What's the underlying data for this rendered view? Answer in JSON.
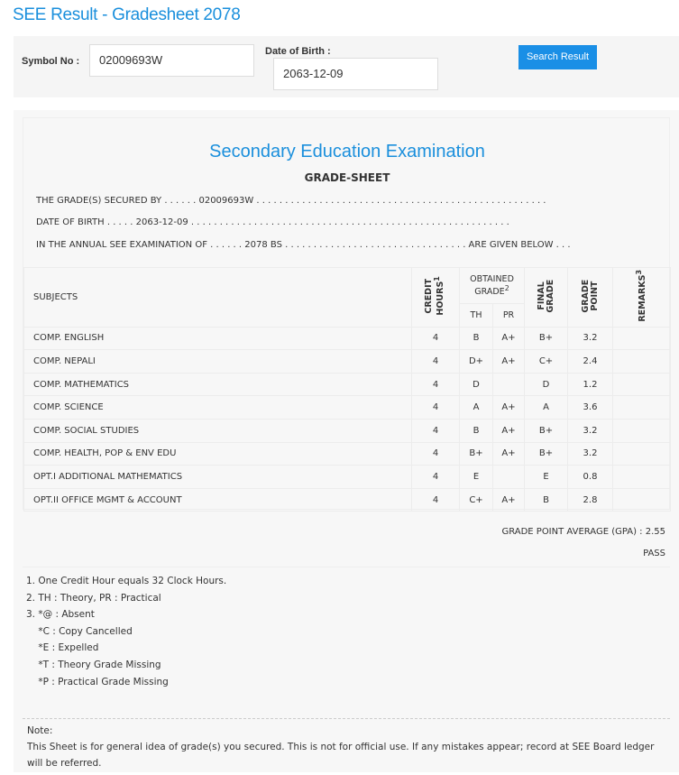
{
  "page_title": "SEE Result - Gradesheet 2078",
  "search": {
    "symbol_label": "Symbol No :",
    "symbol_value": "02009693W",
    "dob_label": "Date of Birth :",
    "dob_value": "2063-12-09",
    "button_label": "Search Result"
  },
  "sheet": {
    "heading": "Secondary Education Examination",
    "subheading": "GRADE-SHEET",
    "line1": "THE GRADE(S) SECURED BY . . . . . . 02009693W . . . . . . . . . . . . . . . . . . . . . . . . . . . . . . . . . . . . . . . . . . . . . . . . . . .",
    "line2": "DATE OF BIRTH . . . . . 2063-12-09 . . . . . . . . . . . . . . . . . . . . . . . . . . . . . . . . . . . . . . . . . . . . . . . . . . . . . . . .",
    "line3": "IN THE ANNUAL SEE EXAMINATION OF . . . . . . 2078 BS . . . . . . . . . . . . . . . . . . . . . . . . . . . . . . . . ARE GIVEN BELOW . . .",
    "headers": {
      "subjects": "SUBJECTS",
      "credit": "CREDIT HOURS",
      "credit_sup": "1",
      "obtained": "OBTAINED GRADE",
      "obtained_sup": "2",
      "th": "TH",
      "pr": "PR",
      "final": "FINAL GRADE",
      "gp": "GRADE POINT",
      "remarks": "REMARKS",
      "remarks_sup": "3"
    },
    "rows": [
      {
        "subject": "COMP. ENGLISH",
        "credit": "4",
        "th": "B",
        "pr": "A+",
        "final": "B+",
        "gp": "3.2",
        "remarks": ""
      },
      {
        "subject": "COMP. NEPALI",
        "credit": "4",
        "th": "D+",
        "pr": "A+",
        "final": "C+",
        "gp": "2.4",
        "remarks": ""
      },
      {
        "subject": "COMP. MATHEMATICS",
        "credit": "4",
        "th": "D",
        "pr": "",
        "final": "D",
        "gp": "1.2",
        "remarks": ""
      },
      {
        "subject": "COMP. SCIENCE",
        "credit": "4",
        "th": "A",
        "pr": "A+",
        "final": "A",
        "gp": "3.6",
        "remarks": ""
      },
      {
        "subject": "COMP. SOCIAL STUDIES",
        "credit": "4",
        "th": "B",
        "pr": "A+",
        "final": "B+",
        "gp": "3.2",
        "remarks": ""
      },
      {
        "subject": "COMP. HEALTH, POP & ENV EDU",
        "credit": "4",
        "th": "B+",
        "pr": "A+",
        "final": "B+",
        "gp": "3.2",
        "remarks": ""
      },
      {
        "subject": "OPT.I ADDITIONAL MATHEMATICS",
        "credit": "4",
        "th": "E",
        "pr": "",
        "final": "E",
        "gp": "0.8",
        "remarks": ""
      },
      {
        "subject": "OPT.II OFFICE MGMT & ACCOUNT",
        "credit": "4",
        "th": "C+",
        "pr": "A+",
        "final": "B",
        "gp": "2.8",
        "remarks": ""
      }
    ],
    "gpa": "GRADE POINT AVERAGE (GPA) : 2.55",
    "result": "PASS",
    "footnotes": [
      "1. One Credit Hour equals 32 Clock Hours.",
      "2. TH : Theory, PR : Practical",
      "3. *@ : Absent",
      "    *C : Copy Cancelled",
      "    *E : Expelled",
      "    *T : Theory Grade Missing",
      "    *P : Practical Grade Missing"
    ],
    "note_title": "Note:",
    "note_text": "This Sheet is for general idea of grade(s) you secured. This is not for official use. If any mistakes appear; record at SEE Board ledger will be referred."
  }
}
